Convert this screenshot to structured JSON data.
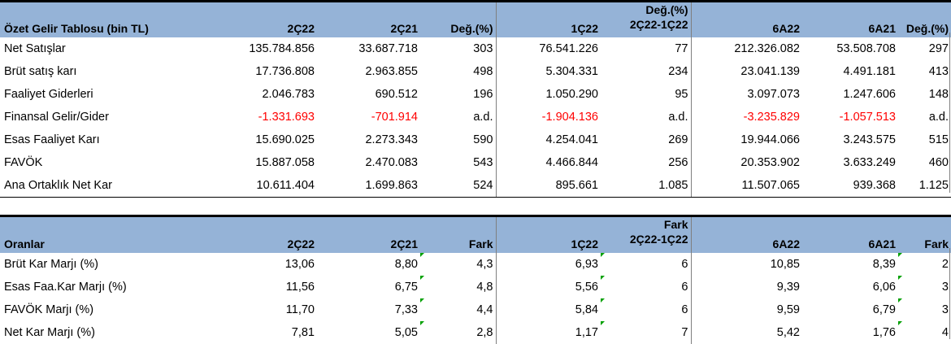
{
  "income": {
    "headers": {
      "title": "Özet Gelir Tablosu (bin TL)",
      "q2_22": "2Ç22",
      "q2_21": "2Ç21",
      "chg": "Değ.(%)",
      "q1_22": "1Ç22",
      "qoq_line1": "Değ.(%)",
      "qoq_line2": "2Ç22-1Ç22",
      "h1_22": "6A22",
      "h1_21": "6A21",
      "chg2": "Değ.(%)"
    },
    "rows": [
      {
        "label": "Net Satışlar",
        "q2_22": "135.784.856",
        "q2_21": "33.687.718",
        "chg": "303",
        "q1_22": "76.541.226",
        "qoq": "77",
        "h1_22": "212.326.082",
        "h1_21": "53.508.708",
        "chg2": "297"
      },
      {
        "label": "Brüt satış karı",
        "q2_22": "17.736.808",
        "q2_21": "2.963.855",
        "chg": "498",
        "q1_22": "5.304.331",
        "qoq": "234",
        "h1_22": "23.041.139",
        "h1_21": "4.491.181",
        "chg2": "413"
      },
      {
        "label": "Faaliyet Giderleri",
        "q2_22": "2.046.783",
        "q2_21": "690.512",
        "chg": "196",
        "q1_22": "1.050.290",
        "qoq": "95",
        "h1_22": "3.097.073",
        "h1_21": "1.247.606",
        "chg2": "148"
      },
      {
        "label": "Finansal Gelir/Gider",
        "q2_22": "-1.331.693",
        "q2_21": "-701.914",
        "chg": "a.d.",
        "q1_22": "-1.904.136",
        "qoq": "a.d.",
        "h1_22": "-3.235.829",
        "h1_21": "-1.057.513",
        "chg2": "a.d."
      },
      {
        "label": "Esas Faaliyet Karı",
        "q2_22": "15.690.025",
        "q2_21": "2.273.343",
        "chg": "590",
        "q1_22": "4.254.041",
        "qoq": "269",
        "h1_22": "19.944.066",
        "h1_21": "3.243.575",
        "chg2": "515"
      },
      {
        "label": "FAVÖK",
        "q2_22": "15.887.058",
        "q2_21": "2.470.083",
        "chg": "543",
        "q1_22": "4.466.844",
        "qoq": "256",
        "h1_22": "20.353.902",
        "h1_21": "3.633.249",
        "chg2": "460"
      },
      {
        "label": "Ana Ortaklık Net Kar",
        "q2_22": "10.611.404",
        "q2_21": "1.699.863",
        "chg": "524",
        "q1_22": "895.661",
        "qoq": "1.085",
        "h1_22": "11.507.065",
        "h1_21": "939.368",
        "chg2": "1.125"
      }
    ]
  },
  "ratios": {
    "headers": {
      "title": "Oranlar",
      "q2_22": "2Ç22",
      "q2_21": "2Ç21",
      "diff": "Fark",
      "q1_22": "1Ç22",
      "qoq_line1": "Fark",
      "qoq_line2": "2Ç22-1Ç22",
      "h1_22": "6A22",
      "h1_21": "6A21",
      "diff2": "Fark"
    },
    "rows": [
      {
        "label": "Brüt Kar Marjı (%)",
        "q2_22": "13,06",
        "q2_21": "8,80",
        "diff": "4,3",
        "q1_22": "6,93",
        "qoq": "6",
        "h1_22": "10,85",
        "h1_21": "8,39",
        "diff2": "2"
      },
      {
        "label": "Esas Faa.Kar Marjı (%)",
        "q2_22": "11,56",
        "q2_21": "6,75",
        "diff": "4,8",
        "q1_22": "5,56",
        "qoq": "6",
        "h1_22": "9,39",
        "h1_21": "6,06",
        "diff2": "3"
      },
      {
        "label": "FAVÖK Marjı (%)",
        "q2_22": "11,70",
        "q2_21": "7,33",
        "diff": "4,4",
        "q1_22": "5,84",
        "qoq": "6",
        "h1_22": "9,59",
        "h1_21": "6,79",
        "diff2": "3"
      },
      {
        "label": "Net Kar Marjı (%)",
        "q2_22": "7,81",
        "q2_21": "5,05",
        "diff": "2,8",
        "q1_22": "1,17",
        "qoq": "7",
        "h1_22": "5,42",
        "h1_21": "1,76",
        "diff2": "4"
      }
    ]
  },
  "colors": {
    "header_bg": "#95b3d7",
    "negative": "#ff0000",
    "indicator": "#00a000"
  }
}
